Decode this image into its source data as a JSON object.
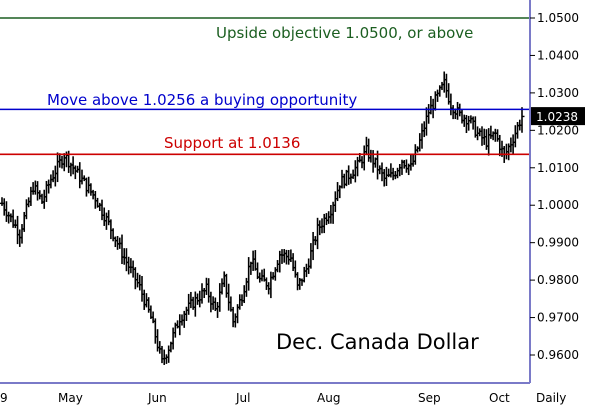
{
  "chart_data": {
    "type": "line",
    "style": "ohlc-bars",
    "title": "Dec. Canada Dollar",
    "x_period_label": "Daily",
    "x_tick_labels": [
      "9",
      "May",
      "Jun",
      "Jul",
      "Aug",
      "Sep",
      "Oct"
    ],
    "y_tick_labels": [
      "1.0500",
      "1.0400",
      "1.0300",
      "1.0200",
      "1.0100",
      "1.0000",
      "0.9900",
      "0.9800",
      "0.9700",
      "0.9600"
    ],
    "ylim": [
      0.955,
      1.0515
    ],
    "last_price_label": "1.0238",
    "last_price": 1.0238,
    "reference_lines": [
      {
        "id": "objective",
        "value": 1.05,
        "color": "#1b5e20",
        "label": "Upside objective 1.0500, or above"
      },
      {
        "id": "buy",
        "value": 1.0256,
        "color": "#0000cc",
        "label": "Move above 1.0256 a buying opportunity"
      },
      {
        "id": "support",
        "value": 1.0136,
        "color": "#cc0000",
        "label": "Support at 1.0136"
      }
    ],
    "anchors": [
      [
        0,
        1.0005
      ],
      [
        8,
        0.9925
      ],
      [
        14,
        1.005
      ],
      [
        18,
        1.001
      ],
      [
        22,
        1.007
      ],
      [
        28,
        1.0135
      ],
      [
        35,
        1.0075
      ],
      [
        42,
        1.002
      ],
      [
        48,
        0.995
      ],
      [
        55,
        0.986
      ],
      [
        62,
        0.978
      ],
      [
        67,
        0.97
      ],
      [
        72,
        0.958
      ],
      [
        75,
        0.962
      ],
      [
        80,
        0.97
      ],
      [
        86,
        0.974
      ],
      [
        92,
        0.9775
      ],
      [
        96,
        0.972
      ],
      [
        100,
        0.98
      ],
      [
        104,
        0.969
      ],
      [
        108,
        0.976
      ],
      [
        112,
        0.9855
      ],
      [
        116,
        0.98
      ],
      [
        120,
        0.979
      ],
      [
        125,
        0.987
      ],
      [
        130,
        0.986
      ],
      [
        133,
        0.978
      ],
      [
        137,
        0.983
      ],
      [
        142,
        0.9935
      ],
      [
        148,
        0.999
      ],
      [
        152,
        1.006
      ],
      [
        156,
        1.008
      ],
      [
        160,
        1.0105
      ],
      [
        164,
        1.0145
      ],
      [
        168,
        1.011
      ],
      [
        172,
        1.007
      ],
      [
        176,
        1.008
      ],
      [
        180,
        1.012
      ],
      [
        184,
        1.01
      ],
      [
        188,
        1.017
      ],
      [
        192,
        1.025
      ],
      [
        196,
        1.029
      ],
      [
        199,
        1.0325
      ],
      [
        202,
        1.027
      ],
      [
        206,
        1.024
      ],
      [
        210,
        1.023
      ],
      [
        214,
        1.019
      ],
      [
        218,
        1.017
      ],
      [
        222,
        1.019
      ],
      [
        226,
        1.013
      ],
      [
        230,
        1.018
      ],
      [
        234,
        1.0238
      ]
    ],
    "grid": false
  }
}
